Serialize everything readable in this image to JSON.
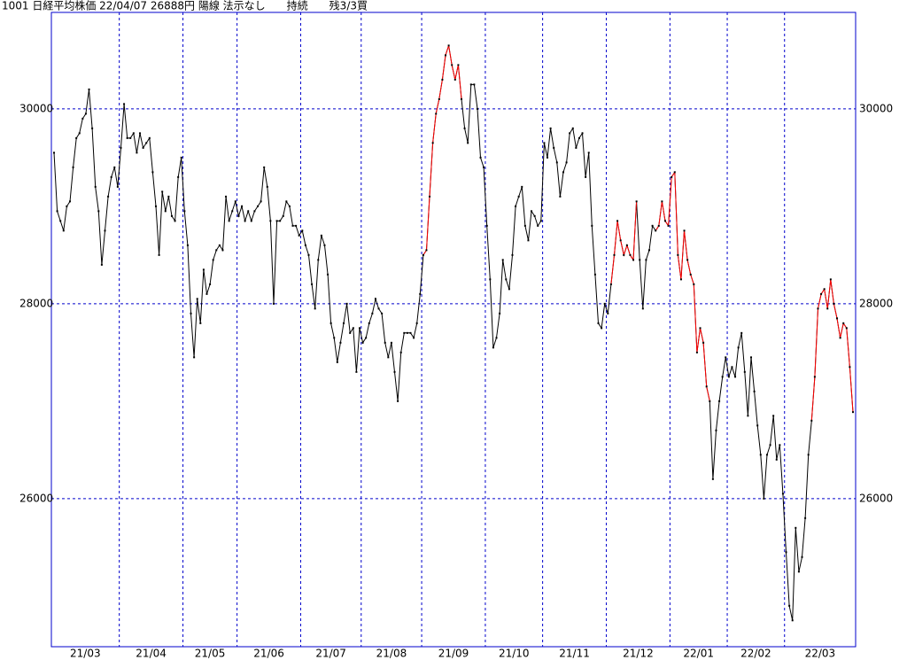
{
  "chart_data": {
    "type": "line",
    "title": "1001 日経平均株価 22/04/07 26888円 陽線 法示なし　　持続　　残3/3買",
    "categories": [
      "21/03",
      null,
      null,
      null,
      null,
      null,
      null,
      null,
      null,
      null,
      null,
      null,
      null,
      null,
      null,
      null,
      null,
      null,
      null,
      null,
      null,
      "21/04",
      null,
      null,
      null,
      null,
      null,
      null,
      null,
      null,
      null,
      null,
      null,
      null,
      null,
      null,
      null,
      null,
      null,
      null,
      null,
      "21/05",
      null,
      null,
      null,
      null,
      null,
      null,
      null,
      null,
      null,
      null,
      null,
      null,
      null,
      null,
      null,
      null,
      "21/06",
      null,
      null,
      null,
      null,
      null,
      null,
      null,
      null,
      null,
      null,
      null,
      null,
      null,
      null,
      null,
      null,
      null,
      null,
      null,
      "21/07",
      null,
      null,
      null,
      null,
      null,
      null,
      null,
      null,
      null,
      null,
      null,
      null,
      null,
      null,
      null,
      null,
      null,
      null,
      "21/08",
      null,
      null,
      null,
      null,
      null,
      null,
      null,
      null,
      null,
      null,
      null,
      null,
      null,
      null,
      null,
      null,
      null,
      null,
      "21/09",
      null,
      null,
      null,
      null,
      null,
      null,
      null,
      null,
      null,
      null,
      null,
      null,
      null,
      null,
      null,
      null,
      null,
      null,
      null,
      "21/10",
      null,
      null,
      null,
      null,
      null,
      null,
      null,
      null,
      null,
      null,
      null,
      null,
      null,
      null,
      null,
      null,
      null,
      "21/11",
      null,
      null,
      null,
      null,
      null,
      null,
      null,
      null,
      null,
      null,
      null,
      null,
      null,
      null,
      null,
      null,
      null,
      null,
      null,
      "21/12",
      null,
      null,
      null,
      null,
      null,
      null,
      null,
      null,
      null,
      null,
      null,
      null,
      null,
      null,
      null,
      null,
      null,
      null,
      null,
      "22/01",
      null,
      null,
      null,
      null,
      null,
      null,
      null,
      null,
      null,
      null,
      null,
      null,
      null,
      null,
      null,
      null,
      null,
      "22/02",
      null,
      null,
      null,
      null,
      null,
      null,
      null,
      null,
      null,
      null,
      null,
      null,
      null,
      null,
      null,
      null,
      null,
      "22/03",
      null,
      null,
      null,
      null,
      null,
      null,
      null,
      null,
      null,
      null,
      null,
      null,
      null,
      null,
      null,
      null,
      null,
      null,
      null,
      null,
      null
    ],
    "series": [
      {
        "color": "#000000",
        "values": [
          29550,
          28950,
          28850,
          28750,
          29000,
          29050,
          29400,
          29700,
          29750,
          29900,
          29950,
          30200,
          29800,
          29200,
          28950,
          28400,
          28750,
          29100,
          29300,
          29400,
          29200,
          29600,
          30050,
          29700,
          29700,
          29750,
          29550,
          29750,
          29600,
          29650,
          29700,
          29350,
          29000,
          28500,
          29150,
          28950,
          29100,
          28900,
          28850,
          29300,
          29500,
          28950,
          28600,
          27900,
          27450,
          28050,
          27800,
          28350,
          28100,
          28200,
          28450,
          28550,
          28600,
          28550,
          29100,
          28850,
          28950,
          29050,
          28900,
          29000,
          28850,
          28950,
          28850,
          28950,
          29000,
          29050,
          29400,
          29200,
          28850,
          28000,
          28850,
          28850,
          28900,
          29050,
          29000,
          28800,
          28800,
          28700,
          28750,
          28600,
          28500,
          28200,
          27950,
          28450,
          28700,
          28600,
          28300,
          27800,
          27650,
          27400,
          27600,
          27800,
          28000,
          27700,
          27750,
          27300,
          27750,
          27600,
          27650,
          27800,
          27900,
          28050,
          27950,
          27900,
          27600,
          27450,
          27600,
          27300,
          27000,
          27500,
          27700,
          27700,
          27700,
          27650,
          27800,
          28100,
          28500,
          28550,
          29100,
          29650,
          29950,
          30100,
          30300,
          30550,
          30650,
          30450,
          30300,
          30450,
          30100,
          29800,
          29650,
          30250,
          30250,
          30000,
          29500,
          29400,
          28800,
          28250,
          27550,
          27650,
          27900,
          28450,
          28250,
          28150,
          28500,
          29000,
          29100,
          29200,
          28800,
          28650,
          28950,
          28900,
          28800,
          28850,
          29650,
          29500,
          29800,
          29600,
          29450,
          29100,
          29350,
          29450,
          29750,
          29800,
          29600,
          29700,
          29750,
          29300,
          29550,
          28800,
          28300,
          27800,
          27750,
          28000,
          27900,
          28200,
          28500,
          28850,
          28650,
          28500,
          28600,
          28500,
          28450,
          29050,
          28450,
          27950,
          28450,
          28550,
          28800,
          28750,
          28800,
          29050,
          28850,
          28800,
          29300,
          29350,
          28500,
          28250,
          28750,
          28450,
          28300,
          28200,
          27500,
          27750,
          27600,
          27150,
          27000,
          26200,
          26700,
          27000,
          27250,
          27450,
          27250,
          27350,
          27250,
          27550,
          27700,
          27300,
          26850,
          27450,
          27100,
          26750,
          26450,
          26000,
          26450,
          26550,
          26850,
          26400,
          26550,
          26050,
          25450,
          24900,
          24750,
          25700,
          25250,
          25400,
          25800,
          26450,
          26800,
          27250,
          27950,
          28100,
          28150,
          27950,
          28250,
          28000,
          27850,
          27650,
          27800,
          27750,
          27350,
          26888
        ]
      },
      {
        "color": "#ff0000",
        "values": [
          null,
          null,
          null,
          null,
          null,
          null,
          null,
          null,
          null,
          null,
          null,
          null,
          null,
          null,
          null,
          null,
          null,
          null,
          null,
          null,
          null,
          null,
          null,
          null,
          null,
          null,
          null,
          null,
          null,
          null,
          null,
          null,
          null,
          null,
          null,
          null,
          null,
          null,
          null,
          null,
          null,
          null,
          null,
          null,
          null,
          null,
          null,
          null,
          null,
          null,
          null,
          null,
          null,
          null,
          null,
          null,
          null,
          null,
          null,
          null,
          null,
          null,
          null,
          null,
          null,
          null,
          null,
          null,
          null,
          null,
          null,
          null,
          null,
          null,
          null,
          null,
          null,
          null,
          null,
          null,
          null,
          null,
          null,
          null,
          null,
          null,
          null,
          null,
          null,
          null,
          null,
          null,
          null,
          null,
          null,
          null,
          null,
          null,
          null,
          null,
          null,
          null,
          null,
          null,
          null,
          null,
          null,
          null,
          null,
          null,
          null,
          null,
          null,
          null,
          null,
          null,
          28500,
          28550,
          29100,
          29650,
          29950,
          30100,
          30300,
          30550,
          30650,
          30450,
          30300,
          30450,
          30100,
          null,
          null,
          null,
          null,
          null,
          null,
          null,
          null,
          null,
          null,
          null,
          null,
          null,
          null,
          null,
          null,
          null,
          null,
          null,
          null,
          null,
          null,
          null,
          null,
          null,
          null,
          null,
          null,
          null,
          null,
          null,
          null,
          null,
          null,
          null,
          null,
          null,
          null,
          null,
          null,
          null,
          null,
          null,
          null,
          null,
          null,
          28200,
          28500,
          28850,
          28650,
          28500,
          28600,
          28500,
          28450,
          29050,
          null,
          null,
          null,
          null,
          null,
          28750,
          28800,
          29050,
          28850,
          28800,
          29300,
          29350,
          28500,
          28250,
          28750,
          28450,
          28300,
          28200,
          27500,
          27750,
          27600,
          27150,
          27000,
          null,
          null,
          null,
          null,
          null,
          null,
          null,
          null,
          null,
          null,
          null,
          null,
          null,
          null,
          null,
          null,
          null,
          null,
          null,
          null,
          null,
          null,
          null,
          null,
          null,
          null,
          null,
          null,
          null,
          null,
          null,
          26800,
          27250,
          27950,
          28100,
          28150,
          27950,
          28250,
          28000,
          27850,
          27650,
          27800,
          27750,
          27350,
          26888
        ]
      }
    ],
    "ylim": [
      24480,
      30990
    ],
    "yticks": [
      26000,
      28000,
      30000
    ],
    "grid": true
  }
}
